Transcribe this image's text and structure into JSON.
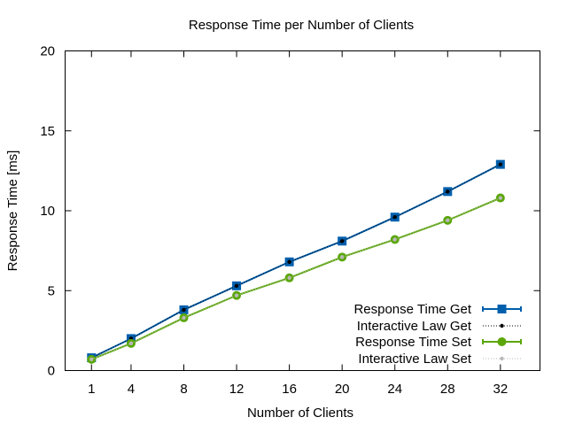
{
  "chart_data": {
    "type": "line",
    "title": "Response Time per Number of Clients",
    "xlabel": "Number of Clients",
    "ylabel": "Response Time [ms]",
    "xlim": [
      -1,
      35
    ],
    "ylim": [
      0,
      20
    ],
    "xticks": [
      1,
      4,
      8,
      12,
      16,
      20,
      24,
      28,
      32
    ],
    "yticks": [
      0,
      5,
      10,
      15,
      20
    ],
    "grid": false,
    "legend_position": "bottom-right",
    "x": [
      1,
      4,
      8,
      12,
      16,
      20,
      24,
      28,
      32
    ],
    "series": [
      {
        "name": "Response Time Get",
        "values": [
          0.8,
          2.0,
          3.8,
          5.3,
          6.8,
          8.1,
          9.6,
          11.2,
          12.9
        ],
        "color": "#005fad",
        "marker": "square",
        "style": "solid"
      },
      {
        "name": "Interactive Law Get",
        "values": [
          0.8,
          2.0,
          3.8,
          5.3,
          6.8,
          8.1,
          9.6,
          11.2,
          12.9
        ],
        "color": "#000000",
        "marker": "dot",
        "style": "dotted"
      },
      {
        "name": "Response Time Set",
        "values": [
          0.7,
          1.7,
          3.3,
          4.7,
          5.8,
          7.1,
          8.2,
          9.4,
          10.8
        ],
        "color": "#5ba70a",
        "marker": "circle",
        "style": "solid"
      },
      {
        "name": "Interactive Law Set",
        "values": [
          0.7,
          1.7,
          3.3,
          4.7,
          5.8,
          7.1,
          8.2,
          9.4,
          10.8
        ],
        "color": "#b8b8b8",
        "marker": "dot",
        "style": "dotted"
      }
    ]
  }
}
